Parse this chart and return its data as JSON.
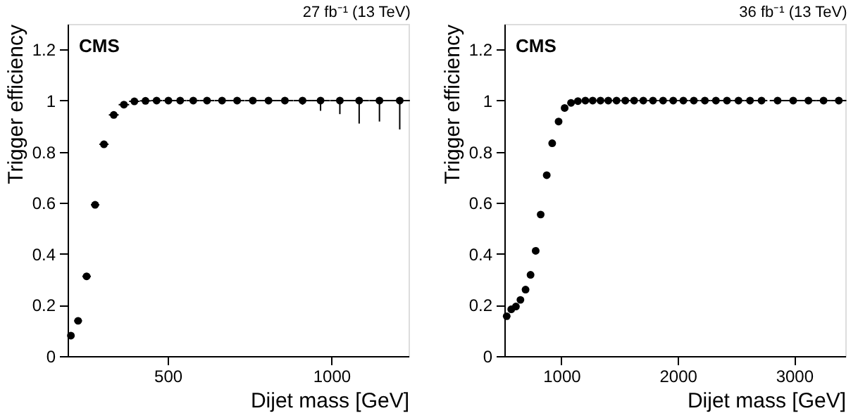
{
  "chart_data": [
    {
      "type": "scatter",
      "title": "27 fb⁻¹ (13 TeV)",
      "xlabel": "Dijet mass [GeV]",
      "ylabel": "Trigger efficiency",
      "annotations": [
        "CMS"
      ],
      "x": [
        204,
        226,
        252,
        278,
        305,
        335,
        366,
        398,
        432,
        466,
        502,
        538,
        578,
        620,
        666,
        712,
        760,
        808,
        858,
        912,
        967,
        1026,
        1085,
        1147,
        1209
      ],
      "series": [
        {
          "color": "#000000",
          "values": [
            0.08,
            0.138,
            0.312,
            0.592,
            0.829,
            0.944,
            0.984,
            0.997,
            0.999,
            1,
            1,
            1,
            1,
            1,
            1,
            1,
            1,
            1,
            1,
            1,
            1,
            1,
            1,
            1,
            1
          ],
          "errors": [
            null,
            null,
            null,
            null,
            null,
            null,
            null,
            null,
            null,
            null,
            null,
            null,
            null,
            null,
            null,
            null,
            null,
            null,
            null,
            [
              0.984,
              1
            ],
            [
              0.96,
              1
            ],
            [
              0.947,
              1
            ],
            [
              0.91,
              1
            ],
            [
              0.918,
              1
            ],
            [
              0.887,
              1
            ]
          ],
          "xerrors": [
            null,
            12,
            13,
            13,
            14,
            15,
            16,
            16,
            17,
            17,
            18,
            19,
            20,
            22,
            23,
            23,
            24,
            25,
            26,
            27,
            28,
            30,
            30,
            31,
            31
          ]
        }
      ],
      "xlim": [
        194,
        1236
      ],
      "xticks": [
        500,
        1000
      ],
      "ylim": [
        0,
        1.3
      ],
      "yticks": [
        0,
        0.2,
        0.4,
        0.6,
        0.8,
        1,
        1.2
      ],
      "grid": false,
      "marker": "circle"
    },
    {
      "type": "scatter",
      "title": "36 fb⁻¹ (13 TeV)",
      "xlabel": "Dijet mass [GeV]",
      "ylabel": "Trigger efficiency",
      "annotations": [
        "CMS"
      ],
      "x": [
        530,
        569,
        609,
        648,
        692,
        735,
        779,
        822,
        874,
        921,
        976,
        1028,
        1083,
        1142,
        1206,
        1269,
        1336,
        1403,
        1474,
        1549,
        1625,
        1704,
        1787,
        1874,
        1961,
        2048,
        2138,
        2233,
        2328,
        2423,
        2522,
        2621,
        2720,
        2858,
        2992,
        3123,
        3253,
        3384
      ],
      "series": [
        {
          "color": "#000000",
          "values": [
            0.156,
            0.183,
            0.194,
            0.22,
            0.26,
            0.318,
            0.412,
            0.554,
            0.708,
            0.833,
            0.918,
            0.971,
            0.991,
            0.998,
            1,
            1,
            1,
            1,
            1,
            1,
            1,
            1,
            1,
            1,
            1,
            1,
            1,
            1,
            1,
            1,
            1,
            1,
            1,
            1,
            1,
            1,
            1,
            1
          ],
          "xerrors": [
            20,
            20,
            20,
            21,
            22,
            22,
            22,
            23,
            25,
            26,
            27,
            27,
            28,
            30,
            31,
            32,
            33,
            34,
            37,
            38,
            39,
            40,
            42,
            43,
            43,
            44,
            45,
            47,
            48,
            48,
            49,
            50,
            50,
            68,
            67,
            65,
            65,
            65
          ]
        }
      ],
      "xlim": [
        510,
        3440
      ],
      "xticks": [
        1000,
        2000,
        3000
      ],
      "ylim": [
        0,
        1.3
      ],
      "yticks": [
        0,
        0.2,
        0.4,
        0.6,
        0.8,
        1,
        1.2
      ],
      "grid": false,
      "marker": "circle"
    }
  ]
}
